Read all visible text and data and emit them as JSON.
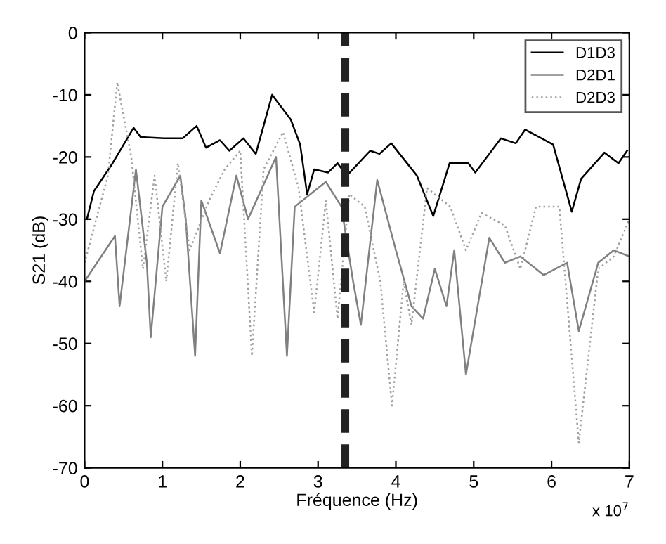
{
  "chart_data": {
    "type": "line",
    "xlabel": "Fréquence (Hz)",
    "ylabel": "S21 (dB)",
    "xlim": [
      0,
      7
    ],
    "xticks": [
      0,
      1,
      2,
      3,
      4,
      5,
      6,
      7
    ],
    "ylim": [
      -70,
      0
    ],
    "yticks": [
      -70,
      -60,
      -50,
      -40,
      -30,
      -20,
      -10,
      0
    ],
    "grid": false,
    "legend": "top right",
    "annotations": [
      "x 10$^{7}$"
    ],
    "ref_lines": [
      {
        "axis": "x",
        "value": 3.35,
        "label": null,
        "color": "#222222",
        "line_style": "dashed"
      }
    ],
    "series": [
      {
        "name": "D1D3",
        "color": "#000000",
        "line_style": "solid",
        "x": [
          0.03,
          0.12,
          0.36,
          0.63,
          0.72,
          1.02,
          1.26,
          1.44,
          1.56,
          1.74,
          1.86,
          2.04,
          2.2,
          2.41,
          2.65,
          2.77,
          2.86,
          2.95,
          3.13,
          3.25,
          3.37,
          3.67,
          3.79,
          3.94,
          4.27,
          4.48,
          4.69,
          4.93,
          5.02,
          5.35,
          5.54,
          5.66,
          6.02,
          6.26,
          6.38,
          6.68,
          6.86,
          6.97
        ],
        "values": [
          -30,
          -25.5,
          -21,
          -15.3,
          -16.8,
          -17,
          -17,
          -15,
          -18.5,
          -17.3,
          -19,
          -17,
          -19.5,
          -10,
          -14,
          -18,
          -26,
          -22,
          -22.5,
          -21,
          -23,
          -19,
          -19.5,
          -17.8,
          -23,
          -29.5,
          -21,
          -21,
          -22.5,
          -17,
          -17.8,
          -15.6,
          -18,
          -28.8,
          -23.5,
          -19.3,
          -21,
          -19
        ]
      },
      {
        "name": "D2D1",
        "color": "#808080",
        "line_style": "solid",
        "x": [
          0,
          0.39,
          0.45,
          0.66,
          0.8,
          0.85,
          1.0,
          1.23,
          1.3,
          1.42,
          1.5,
          1.74,
          1.95,
          2.1,
          2.46,
          2.6,
          2.7,
          3.1,
          3.3,
          3.45,
          3.55,
          3.76,
          4.0,
          4.2,
          4.35,
          4.5,
          4.65,
          4.75,
          4.9,
          5.2,
          5.4,
          5.6,
          5.9,
          6.2,
          6.35,
          6.6,
          6.8,
          7.0
        ],
        "values": [
          -40,
          -32.7,
          -44,
          -22,
          -37,
          -49,
          -28,
          -23,
          -30,
          -52,
          -27,
          -35.5,
          -23,
          -30,
          -20,
          -52,
          -28,
          -24,
          -28,
          -40,
          -47,
          -23.7,
          -35,
          -44,
          -46,
          -38,
          -44,
          -35,
          -55,
          -33,
          -37,
          -36,
          -39,
          -37,
          -48,
          -37,
          -35,
          -36
        ]
      },
      {
        "name": "D2D3",
        "color": "#a0a0a0",
        "line_style": "dotted",
        "x": [
          0,
          0.3,
          0.42,
          0.6,
          0.75,
          0.9,
          1.05,
          1.2,
          1.35,
          1.6,
          1.8,
          2.0,
          2.15,
          2.3,
          2.55,
          2.75,
          2.95,
          3.1,
          3.25,
          3.4,
          3.6,
          3.8,
          3.95,
          4.1,
          4.2,
          4.4,
          4.7,
          4.9,
          5.1,
          5.4,
          5.6,
          5.8,
          6.1,
          6.35,
          6.6,
          6.8,
          7.0
        ],
        "values": [
          -37,
          -23,
          -8,
          -20,
          -38,
          -23,
          -40,
          -21,
          -35,
          -27,
          -22,
          -19,
          -52,
          -22,
          -16,
          -25,
          -45,
          -27,
          -46,
          -26,
          -28,
          -40,
          -60,
          -40,
          -47,
          -25,
          -28,
          -35,
          -29,
          -31,
          -38,
          -28,
          -28,
          -66,
          -38,
          -36,
          -30
        ]
      }
    ]
  }
}
